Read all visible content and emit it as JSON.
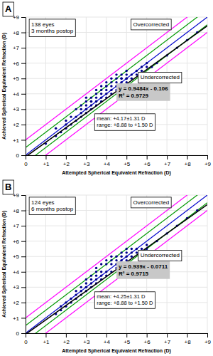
{
  "chart_data": [
    {
      "type": "scatter",
      "title": "A",
      "xlabel": "Attempted Spherical Equivalent Refraction (D)",
      "ylabel": "Achieved Spherical Equivalent Refraction (D)",
      "annotations": [
        [
          "138 eyes",
          "3 months postop"
        ],
        [
          "Overcorrected"
        ],
        [
          "Undercorrected"
        ],
        [
          "y = 0.9484x - 0.106",
          "R² = 0.9729"
        ],
        [
          "mean: +4.17±1.31 D",
          "range: +8.88 to +1.50 D"
        ]
      ],
      "xlim": [
        0,
        9
      ],
      "ylim": [
        0,
        9
      ],
      "xticks": [
        0,
        {
          "value": 1,
          "label": "+1"
        },
        {
          "value": 2,
          "label": "+2"
        },
        {
          "value": 3,
          "label": "+3"
        },
        {
          "value": 4,
          "label": "+4"
        },
        {
          "value": 5,
          "label": "+5"
        },
        {
          "value": 6,
          "label": "+6"
        },
        {
          "value": 7,
          "label": "+7"
        },
        {
          "value": 8,
          "label": "+8"
        },
        {
          "value": 9,
          "label": "+9"
        }
      ],
      "yticks": [
        0,
        {
          "value": 1,
          "label": "+1"
        },
        {
          "value": 2,
          "label": "+2"
        },
        {
          "value": 3,
          "label": "+3"
        },
        {
          "value": 4,
          "label": "+4"
        },
        {
          "value": 5,
          "label": "+5"
        },
        {
          "value": 6,
          "label": "+6"
        },
        {
          "value": 7,
          "label": "+7"
        },
        {
          "value": 8,
          "label": "+8"
        },
        {
          "value": 9,
          "label": "+9"
        }
      ],
      "grid": true,
      "series": [
        {
          "type": "line",
          "color": "#FF00FF",
          "slope": 1,
          "intercept": 1.0
        },
        {
          "type": "line",
          "color": "#FF00FF",
          "slope": 1,
          "intercept": -1.0
        },
        {
          "type": "line",
          "color": "#009900",
          "slope": 1,
          "intercept": 0.5
        },
        {
          "type": "line",
          "color": "#009900",
          "slope": 1,
          "intercept": -0.5
        },
        {
          "type": "line",
          "color": "#0000CC",
          "slope": 1,
          "intercept": 0
        },
        {
          "type": "scatter",
          "color": "#00008B",
          "marker": "circle",
          "x": [
            1.0,
            1.5,
            1.5,
            1.75,
            2.0,
            2.0,
            2.0,
            2.25,
            2.25,
            2.5,
            2.5,
            2.5,
            2.75,
            2.75,
            2.75,
            2.75,
            3.0,
            3.0,
            3.0,
            3.0,
            3.0,
            3.0,
            3.25,
            3.25,
            3.25,
            3.25,
            3.25,
            3.5,
            3.5,
            3.5,
            3.5,
            3.5,
            3.5,
            3.75,
            3.75,
            3.75,
            3.75,
            3.75,
            4.0,
            4.0,
            4.0,
            4.0,
            4.0,
            4.0,
            4.25,
            4.25,
            4.25,
            4.25,
            4.25,
            4.5,
            4.5,
            4.5,
            4.5,
            4.5,
            4.75,
            4.75,
            4.75,
            4.75,
            4.75,
            5.0,
            5.0,
            5.0,
            5.0,
            5.0,
            5.25,
            5.25,
            5.5,
            5.5,
            5.75,
            5.75,
            6.0,
            6.0,
            6.25,
            6.5,
            7.0,
            7.5,
            8.0,
            8.5
          ],
          "values": [
            0.75,
            1.25,
            1.75,
            1.5,
            1.75,
            2.0,
            2.25,
            2.0,
            2.5,
            2.25,
            2.5,
            3.0,
            2.5,
            2.75,
            3.0,
            3.25,
            2.75,
            3.0,
            3.0,
            3.25,
            3.5,
            3.75,
            3.0,
            3.25,
            3.5,
            3.5,
            3.75,
            3.25,
            3.5,
            3.5,
            3.75,
            4.0,
            4.25,
            3.5,
            3.75,
            4.0,
            4.25,
            4.5,
            3.75,
            4.0,
            4.25,
            4.5,
            4.5,
            4.75,
            4.0,
            4.25,
            4.5,
            4.75,
            5.0,
            4.25,
            4.5,
            4.75,
            5.0,
            5.25,
            4.5,
            4.75,
            5.0,
            5.0,
            5.25,
            4.75,
            5.0,
            5.0,
            5.25,
            5.5,
            5.0,
            5.25,
            5.25,
            5.5,
            5.5,
            5.75,
            5.75,
            6.0,
            5.75,
            6.0,
            6.5,
            7.0,
            7.5,
            8.0
          ]
        },
        {
          "type": "line",
          "color": "#000000",
          "slope": 0.9484,
          "intercept": -0.106
        }
      ]
    },
    {
      "type": "scatter",
      "title": "B",
      "xlabel": "Attempted Spherical Equivalent Refraction (D)",
      "ylabel": "Achieved Spherical Equivalent Refraction (D)",
      "annotations": [
        [
          "124 eyes",
          "6 months postop"
        ],
        [
          "Overcorrected"
        ],
        [
          "Undercorrected"
        ],
        [
          "y = 0.939x - 0.0711",
          "R² = 0.9715"
        ],
        [
          "mean: +4.25±1.31 D",
          "range: +8.88 to +1.50 D"
        ]
      ],
      "xlim": [
        0,
        9
      ],
      "ylim": [
        0,
        9
      ],
      "xticks": [
        0,
        {
          "value": 1,
          "label": "+1"
        },
        {
          "value": 2,
          "label": "+2"
        },
        {
          "value": 3,
          "label": "+3"
        },
        {
          "value": 4,
          "label": "+4"
        },
        {
          "value": 5,
          "label": "+5"
        },
        {
          "value": 6,
          "label": "+6"
        },
        {
          "value": 7,
          "label": "+7"
        },
        {
          "value": 8,
          "label": "+8"
        },
        {
          "value": 9,
          "label": "+9"
        }
      ],
      "yticks": [
        0,
        {
          "value": 1,
          "label": "+1"
        },
        {
          "value": 2,
          "label": "+2"
        },
        {
          "value": 3,
          "label": "+3"
        },
        {
          "value": 4,
          "label": "+4"
        },
        {
          "value": 5,
          "label": "+5"
        },
        {
          "value": 6,
          "label": "+6"
        },
        {
          "value": 7,
          "label": "+7"
        },
        {
          "value": 8,
          "label": "+8"
        },
        {
          "value": 9,
          "label": "+9"
        }
      ],
      "grid": true,
      "series": [
        {
          "type": "line",
          "color": "#FF00FF",
          "slope": 1,
          "intercept": 1.0
        },
        {
          "type": "line",
          "color": "#FF00FF",
          "slope": 1,
          "intercept": -1.0
        },
        {
          "type": "line",
          "color": "#009900",
          "slope": 1,
          "intercept": 0.5
        },
        {
          "type": "line",
          "color": "#009900",
          "slope": 1,
          "intercept": -0.5
        },
        {
          "type": "line",
          "color": "#0000CC",
          "slope": 1,
          "intercept": 0
        },
        {
          "type": "scatter",
          "color": "#00008B",
          "marker": "circle",
          "x": [
            1.5,
            1.75,
            1.75,
            2.0,
            2.0,
            2.25,
            2.25,
            2.5,
            2.5,
            2.5,
            2.75,
            2.75,
            2.75,
            3.0,
            3.0,
            3.0,
            3.0,
            3.0,
            3.25,
            3.25,
            3.25,
            3.25,
            3.5,
            3.5,
            3.5,
            3.5,
            3.5,
            3.75,
            3.75,
            3.75,
            3.75,
            4.0,
            4.0,
            4.0,
            4.0,
            4.25,
            4.25,
            4.25,
            4.25,
            4.5,
            4.5,
            4.5,
            4.5,
            4.75,
            4.75,
            4.75,
            5.0,
            5.0,
            5.0,
            5.0,
            5.25,
            5.25,
            5.25,
            5.5,
            5.5,
            5.75,
            6.0,
            6.0,
            6.5,
            7.0,
            7.5,
            8.0,
            8.5
          ],
          "values": [
            1.25,
            1.5,
            1.75,
            1.75,
            2.0,
            2.0,
            2.25,
            2.25,
            2.5,
            2.75,
            2.5,
            2.75,
            3.0,
            2.75,
            3.0,
            3.0,
            3.25,
            3.5,
            3.0,
            3.25,
            3.5,
            3.75,
            3.25,
            3.5,
            3.75,
            4.0,
            4.25,
            3.5,
            3.75,
            4.0,
            4.5,
            3.75,
            4.0,
            4.5,
            4.75,
            4.0,
            4.5,
            4.75,
            5.0,
            4.25,
            4.5,
            4.75,
            5.0,
            4.75,
            5.0,
            5.25,
            4.75,
            5.0,
            5.25,
            5.5,
            5.0,
            5.25,
            5.5,
            5.25,
            5.5,
            5.5,
            5.5,
            5.75,
            6.0,
            6.5,
            7.0,
            7.5,
            8.0
          ]
        },
        {
          "type": "line",
          "color": "#000000",
          "slope": 0.939,
          "intercept": -0.0711
        }
      ]
    }
  ]
}
